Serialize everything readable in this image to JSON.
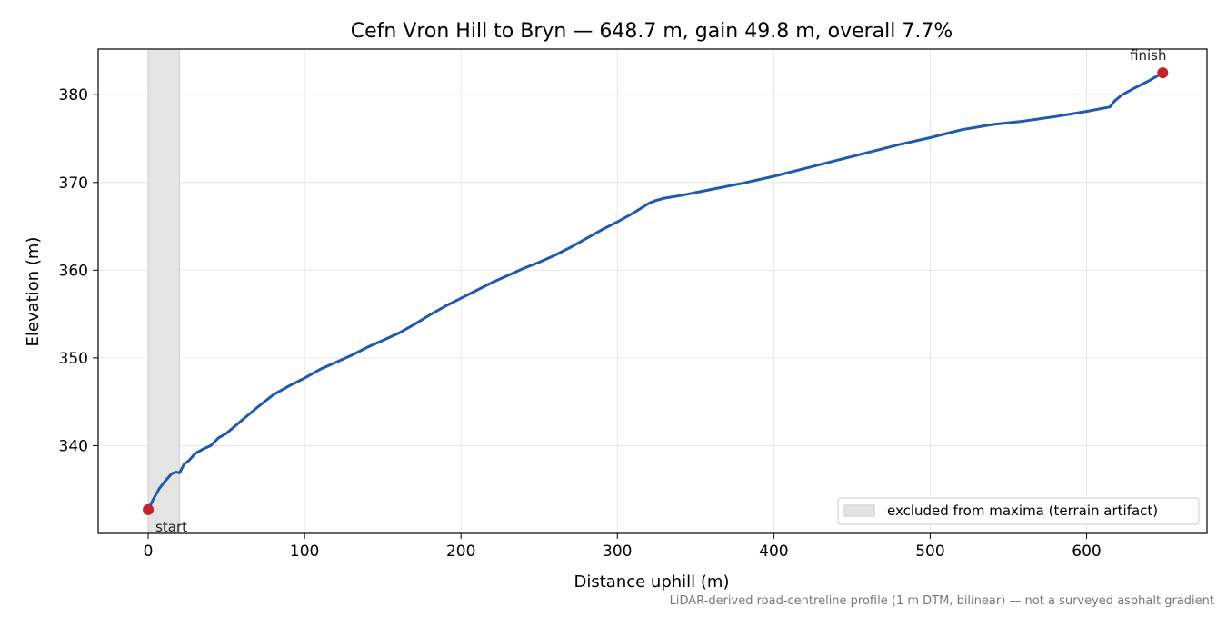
{
  "chart_data": {
    "type": "line",
    "title": "Cefn Vron Hill to Bryn — 648.7 m, gain 49.8 m, overall 7.7%",
    "xlabel": "Distance uphill (m)",
    "ylabel": "Elevation (m)",
    "xlim": [
      -32,
      677
    ],
    "ylim": [
      330.0,
      385.2
    ],
    "x_ticks": [
      0,
      100,
      200,
      300,
      400,
      500,
      600
    ],
    "y_ticks": [
      340,
      350,
      360,
      370,
      380
    ],
    "grid": true,
    "footnote": "LiDAR-derived road-centreline profile (1 m DTM, bilinear) — not a surveyed asphalt gradient",
    "shaded_region": {
      "x_start": 0,
      "x_end": 20,
      "label": "excluded from maxima (terrain artifact)",
      "color": "#e4e4e3"
    },
    "legend": {
      "placement": "lower-right",
      "entries": [
        "excluded from maxima (terrain artifact)"
      ]
    },
    "series": [
      {
        "color": "#1f5aab",
        "x": [
          0,
          3,
          7,
          11,
          15,
          18,
          20,
          23,
          26,
          30,
          35,
          40,
          45,
          50,
          60,
          70,
          80,
          90,
          100,
          110,
          120,
          130,
          140,
          150,
          160,
          170,
          180,
          190,
          200,
          210,
          220,
          230,
          240,
          250,
          260,
          270,
          280,
          290,
          300,
          310,
          320,
          324,
          330,
          340,
          360,
          380,
          400,
          420,
          440,
          460,
          480,
          500,
          520,
          540,
          560,
          580,
          600,
          615,
          618,
          622,
          630,
          640,
          648.7
        ],
        "values": [
          332.7,
          333.8,
          335.1,
          336.0,
          336.8,
          337.0,
          336.9,
          337.9,
          338.3,
          339.1,
          339.6,
          340.0,
          340.9,
          341.4,
          342.9,
          344.4,
          345.8,
          346.8,
          347.7,
          348.7,
          349.5,
          350.3,
          351.2,
          352.0,
          352.8,
          353.8,
          354.9,
          355.9,
          356.8,
          357.7,
          358.6,
          359.4,
          360.2,
          360.9,
          361.7,
          362.6,
          363.6,
          364.6,
          365.5,
          366.5,
          367.6,
          367.9,
          368.2,
          368.5,
          369.2,
          369.9,
          370.7,
          371.6,
          372.5,
          373.4,
          374.3,
          375.1,
          376.0,
          376.6,
          377.0,
          377.5,
          378.1,
          378.6,
          379.3,
          379.9,
          380.7,
          381.6,
          382.5
        ]
      }
    ],
    "annotations": [
      {
        "text": "start",
        "x": 0,
        "y": 332.7,
        "marker_color": "#c0232c"
      },
      {
        "text": "finish",
        "x": 648.7,
        "y": 382.5,
        "marker_color": "#c0232c"
      }
    ]
  }
}
